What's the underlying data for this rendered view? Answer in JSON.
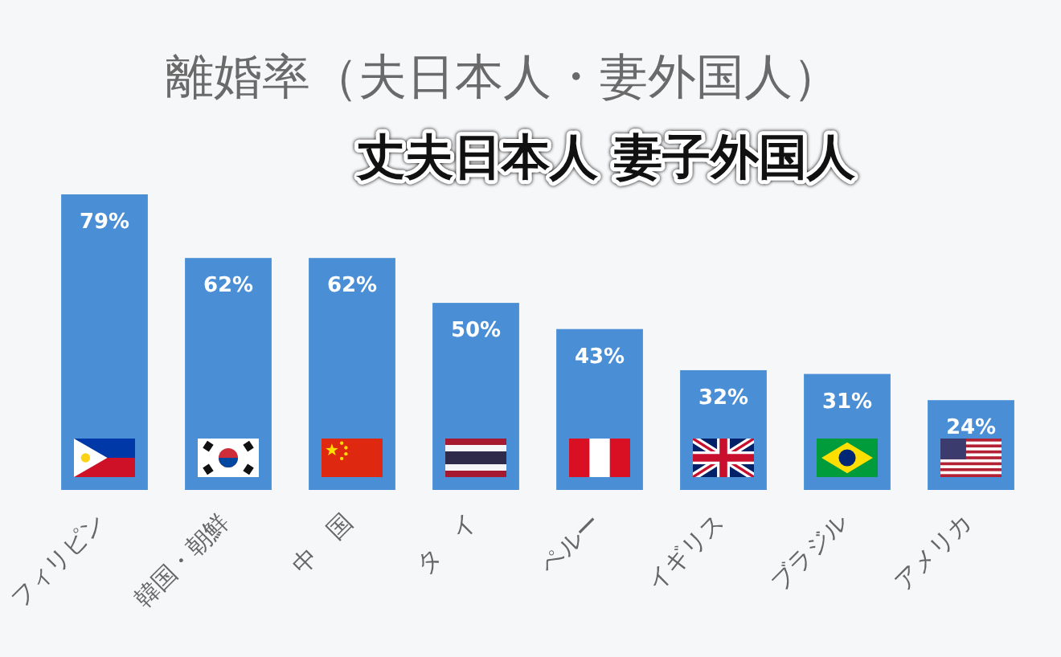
{
  "chart_data": {
    "type": "bar",
    "title": "離婚率（夫日本人・妻外国人）",
    "subtitle": "丈夫日本人 妻子外国人",
    "categories": [
      "フィリピン",
      "韓国・朝鮮",
      "中　国",
      "タ　イ",
      "ペルー",
      "イギリス",
      "ブラジル",
      "アメリカ"
    ],
    "values": [
      79,
      62,
      62,
      50,
      43,
      32,
      31,
      24
    ],
    "value_labels": [
      "79%",
      "62%",
      "62%",
      "50%",
      "43%",
      "32%",
      "31%",
      "24%"
    ],
    "color": "#4a8fd6"
  }
}
